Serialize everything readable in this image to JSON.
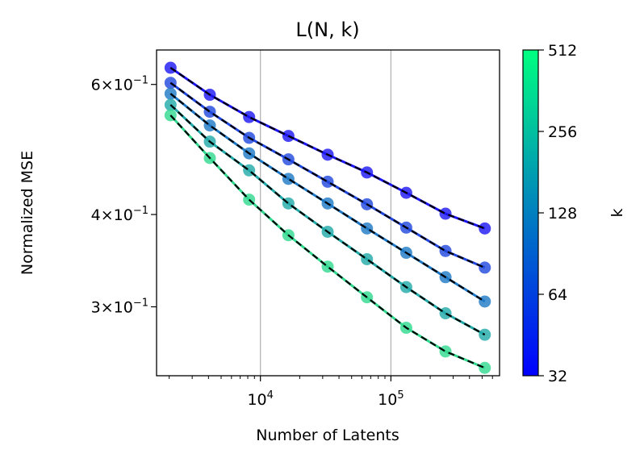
{
  "chart_data": {
    "type": "line",
    "title": "L(N, k)",
    "xlabel": "Number of Latents",
    "ylabel": "Normalized MSE",
    "x_scale": "log",
    "y_scale": "log",
    "xlim": [
      1600,
      680000
    ],
    "ylim": [
      0.242,
      0.668
    ],
    "x_ticks": [
      {
        "value": 10000,
        "base": "10",
        "exp": "4"
      },
      {
        "value": 100000,
        "base": "10",
        "exp": "5"
      }
    ],
    "y_ticks": [
      {
        "value": 0.6,
        "coef": "6",
        "base": "10",
        "exp": "−1"
      },
      {
        "value": 0.4,
        "coef": "4",
        "base": "10",
        "exp": "−1"
      },
      {
        "value": 0.3,
        "coef": "3",
        "base": "10",
        "exp": "−1"
      }
    ],
    "grid": "vertical at major x ticks",
    "x": [
      2048,
      4096,
      8192,
      16384,
      32768,
      65536,
      131072,
      262144,
      524288
    ],
    "series": [
      {
        "k": 32,
        "color": "#1a14f3",
        "values": [
          0.632,
          0.581,
          0.542,
          0.511,
          0.482,
          0.456,
          0.428,
          0.401,
          0.383
        ]
      },
      {
        "k": 64,
        "color": "#1e46dd",
        "values": [
          0.603,
          0.551,
          0.508,
          0.475,
          0.443,
          0.413,
          0.384,
          0.357,
          0.339
        ]
      },
      {
        "k": 128,
        "color": "#1c78c6",
        "values": [
          0.583,
          0.528,
          0.484,
          0.447,
          0.414,
          0.383,
          0.355,
          0.329,
          0.305
        ]
      },
      {
        "k": 256,
        "color": "#1fa9a8",
        "values": [
          0.563,
          0.502,
          0.459,
          0.414,
          0.379,
          0.348,
          0.319,
          0.294,
          0.275
        ]
      },
      {
        "k": 512,
        "color": "#30d98e",
        "values": [
          0.545,
          0.477,
          0.419,
          0.375,
          0.34,
          0.309,
          0.281,
          0.261,
          0.248
        ]
      }
    ],
    "fit_line_style": "black dashed",
    "colorbar": {
      "label": "k",
      "scale": "log2",
      "range": [
        32,
        512
      ],
      "ticks": [
        "32",
        "64",
        "128",
        "256",
        "512"
      ],
      "color_low": "#0000ff",
      "color_high": "#00ff80"
    }
  }
}
